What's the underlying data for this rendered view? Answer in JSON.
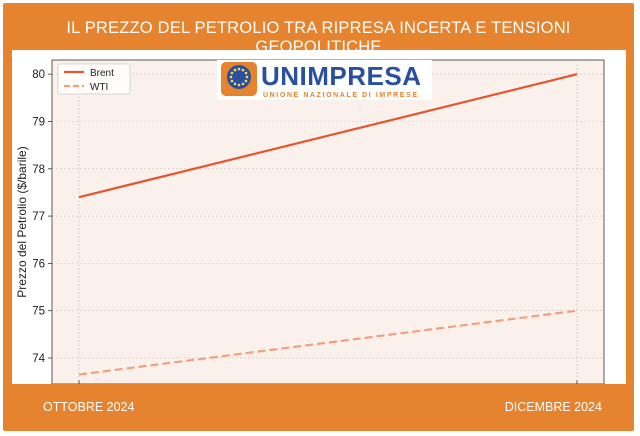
{
  "title": "IL PREZZO DEL PETROLIO TRA RIPRESA INCERTA E TENSIONI GEOPOLITICHE",
  "logo": {
    "name": "UNIMPRESA",
    "tagline": "UNIONE NAZIONALE DI IMPRESE"
  },
  "footer": {
    "left": "OTTOBRE 2024",
    "right": "DICEMBRE 2024"
  },
  "colors": {
    "frame": "#e5832e",
    "plot_bg": "#fbf1ec",
    "brent": "#e4572e",
    "wti": "#f0a17c"
  },
  "chart_data": {
    "type": "line",
    "title": "",
    "xlabel": "",
    "ylabel": "Prezzo del Petrolio ($/barile)",
    "x": [
      "Ottobre 2024",
      "Dicembre 2024"
    ],
    "ylim": [
      73.45,
      80.3
    ],
    "yticks": [
      74,
      75,
      76,
      77,
      78,
      79,
      80
    ],
    "grid": true,
    "legend": "top-left",
    "series": [
      {
        "name": "Brent",
        "values": [
          77.4,
          80.0
        ],
        "style": "solid"
      },
      {
        "name": "WTI",
        "values": [
          73.65,
          75.0
        ],
        "style": "dashed"
      }
    ]
  }
}
